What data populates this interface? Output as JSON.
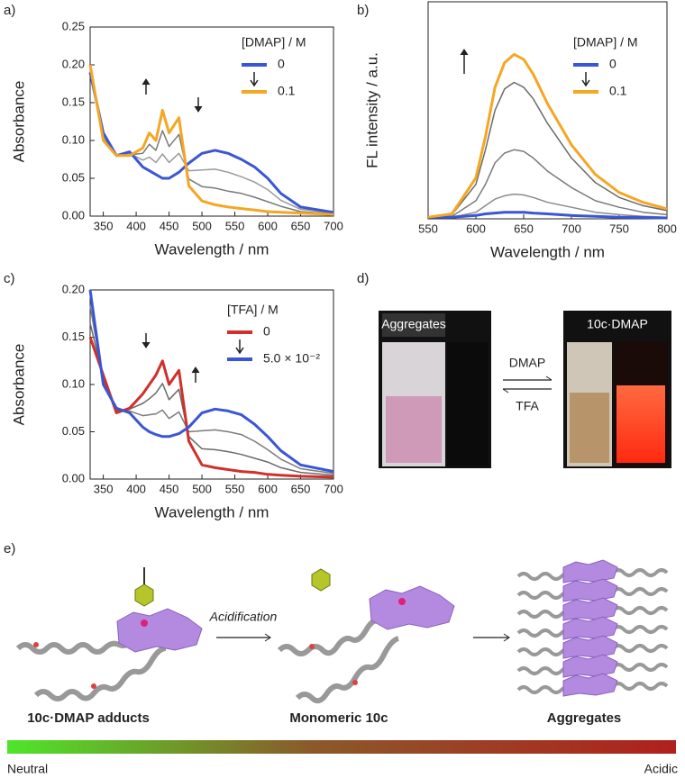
{
  "panel_labels": [
    "a)",
    "b)",
    "c)",
    "d)",
    "e)"
  ],
  "chart_data": [
    {
      "type": "line",
      "x_label": "Wavelength / nm",
      "y_label": "Absorbance",
      "legend_title": "[DMAP] / M",
      "x": [
        330,
        350,
        370,
        390,
        410,
        420,
        430,
        440,
        450,
        465,
        480,
        500,
        520,
        540,
        560,
        580,
        600,
        620,
        650,
        700
      ],
      "xlim": [
        330,
        700
      ],
      "xticks": [
        350,
        400,
        450,
        500,
        550,
        600,
        650,
        700
      ],
      "ylim": [
        0,
        0.25
      ],
      "yticks": [
        {
          "value": 0,
          "label": "0.00"
        },
        {
          "value": 0.05,
          "label": "0.05"
        },
        {
          "value": 0.1,
          "label": "0.10"
        },
        {
          "value": 0.15,
          "label": "0.15"
        },
        {
          "value": 0.2,
          "label": "0.20"
        },
        {
          "value": 0.25,
          "label": "0.25"
        }
      ],
      "series": [
        {
          "color": "#9a9a9a",
          "values": [
            0.194,
            0.107,
            0.08,
            0.083,
            0.074,
            0.078,
            0.071,
            0.082,
            0.071,
            0.083,
            0.06,
            0.061,
            0.062,
            0.058,
            0.052,
            0.045,
            0.035,
            0.021,
            0.009,
            0.004
          ]
        },
        {
          "color": "#7a7a7a",
          "values": [
            0.197,
            0.103,
            0.08,
            0.081,
            0.083,
            0.095,
            0.087,
            0.113,
            0.092,
            0.108,
            0.049,
            0.039,
            0.037,
            0.033,
            0.03,
            0.025,
            0.019,
            0.013,
            0.006,
            0.003
          ]
        },
        {
          "name": "0",
          "color": "#3a56d4",
          "values": [
            0.19,
            0.11,
            0.08,
            0.085,
            0.065,
            0.06,
            0.055,
            0.05,
            0.05,
            0.058,
            0.07,
            0.083,
            0.087,
            0.083,
            0.075,
            0.065,
            0.05,
            0.03,
            0.012,
            0.005
          ]
        },
        {
          "name": "0.1",
          "color": "#f5a623",
          "values": [
            0.2,
            0.1,
            0.08,
            0.08,
            0.09,
            0.11,
            0.1,
            0.14,
            0.11,
            0.13,
            0.04,
            0.02,
            0.015,
            0.012,
            0.01,
            0.008,
            0.006,
            0.005,
            0.004,
            0.002
          ]
        }
      ]
    },
    {
      "type": "line",
      "x_label": "Wavelength / nm",
      "y_label": "FL intensity / a.u.",
      "legend_title": "[DMAP] / M",
      "x": [
        550,
        575,
        600,
        610,
        620,
        630,
        640,
        650,
        660,
        675,
        700,
        725,
        750,
        775,
        800
      ],
      "xlim": [
        550,
        800
      ],
      "xticks": [
        550,
        600,
        650,
        700,
        750,
        800
      ],
      "ylim": [
        0,
        1.32
      ],
      "series": [
        {
          "color": "#8a8a8a",
          "values": [
            0.01,
            0.01,
            0.04,
            0.08,
            0.12,
            0.14,
            0.15,
            0.145,
            0.13,
            0.1,
            0.07,
            0.04,
            0.025,
            0.015,
            0.01
          ]
        },
        {
          "color": "#7a7a7a",
          "values": [
            0.01,
            0.015,
            0.11,
            0.21,
            0.34,
            0.4,
            0.42,
            0.41,
            0.37,
            0.29,
            0.19,
            0.11,
            0.07,
            0.04,
            0.025
          ]
        },
        {
          "color": "#6a6a6a",
          "values": [
            0.01,
            0.025,
            0.21,
            0.42,
            0.66,
            0.79,
            0.83,
            0.8,
            0.73,
            0.58,
            0.37,
            0.22,
            0.13,
            0.08,
            0.05
          ]
        },
        {
          "name": "0",
          "color": "#3a56d4",
          "values": [
            0.01,
            0.01,
            0.02,
            0.03,
            0.035,
            0.04,
            0.04,
            0.04,
            0.035,
            0.03,
            0.02,
            0.015,
            0.01,
            0.008,
            0.005
          ]
        },
        {
          "name": "0.1",
          "color": "#f5a623",
          "values": [
            0.01,
            0.03,
            0.25,
            0.5,
            0.8,
            0.95,
            1.0,
            0.97,
            0.88,
            0.7,
            0.45,
            0.27,
            0.16,
            0.1,
            0.06
          ]
        }
      ]
    },
    {
      "type": "line",
      "x_label": "Wavelength / nm",
      "y_label": "Absorbance",
      "legend_title": "[TFA] / M",
      "x": [
        330,
        350,
        370,
        390,
        410,
        420,
        430,
        440,
        450,
        465,
        480,
        500,
        520,
        540,
        560,
        580,
        600,
        620,
        650,
        700
      ],
      "xlim": [
        330,
        700
      ],
      "xticks": [
        350,
        400,
        450,
        500,
        550,
        600,
        650,
        700
      ],
      "ylim": [
        0,
        0.2
      ],
      "yticks": [
        {
          "value": 0,
          "label": "0.00"
        },
        {
          "value": 0.05,
          "label": "0.05"
        },
        {
          "value": 0.1,
          "label": "0.10"
        },
        {
          "value": 0.15,
          "label": "0.15"
        },
        {
          "value": 0.2,
          "label": "0.20"
        }
      ],
      "series": [
        {
          "color": "#7a7a7a",
          "values": [
            0.183,
            0.104,
            0.073,
            0.072,
            0.067,
            0.068,
            0.069,
            0.073,
            0.064,
            0.071,
            0.05,
            0.051,
            0.052,
            0.05,
            0.047,
            0.04,
            0.031,
            0.021,
            0.011,
            0.006
          ]
        },
        {
          "color": "#6a6a6a",
          "values": [
            0.165,
            0.107,
            0.072,
            0.074,
            0.08,
            0.085,
            0.091,
            0.101,
            0.084,
            0.095,
            0.045,
            0.032,
            0.031,
            0.029,
            0.026,
            0.022,
            0.018,
            0.012,
            0.007,
            0.004
          ]
        },
        {
          "name": "0",
          "color": "#d0302a",
          "values": [
            0.15,
            0.11,
            0.07,
            0.075,
            0.09,
            0.1,
            0.11,
            0.125,
            0.1,
            0.115,
            0.04,
            0.015,
            0.012,
            0.01,
            0.008,
            0.007,
            0.005,
            0.004,
            0.003,
            0.002
          ]
        },
        {
          "name": "5.0 × 10⁻²",
          "color": "#3a56d4",
          "values": [
            0.2,
            0.1,
            0.075,
            0.07,
            0.055,
            0.05,
            0.047,
            0.045,
            0.045,
            0.048,
            0.055,
            0.07,
            0.074,
            0.072,
            0.068,
            0.058,
            0.045,
            0.03,
            0.015,
            0.008
          ]
        }
      ]
    }
  ],
  "photo": {
    "left_label": "Aggregates",
    "right_label": "10c·DMAP",
    "forward": "DMAP",
    "backward": "TFA"
  },
  "scheme": {
    "step": "Acidification",
    "stages": [
      "10c·DMAP adducts",
      "Monomeric 10c",
      "Aggregates"
    ],
    "scale": [
      "Neutral",
      "Acidic"
    ]
  }
}
